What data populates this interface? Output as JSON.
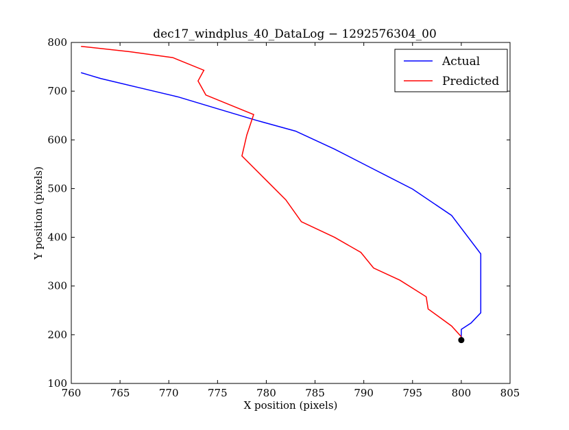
{
  "chart_data": {
    "type": "line",
    "title": "dec17_windplus_40_DataLog − 1292576304_00",
    "xlabel": "X position (pixels)",
    "ylabel": "Y position (pixels)",
    "xlim": [
      760,
      805
    ],
    "ylim": [
      100,
      800
    ],
    "x_ticks": [
      760,
      765,
      770,
      775,
      780,
      785,
      790,
      795,
      800,
      805
    ],
    "y_ticks": [
      100,
      200,
      300,
      400,
      500,
      600,
      700,
      800
    ],
    "grid": false,
    "legend_position": "top-right",
    "series": [
      {
        "name": "Actual",
        "color": "#0000ff",
        "points": [
          [
            761.0,
            738
          ],
          [
            763.0,
            726
          ],
          [
            767.0,
            707
          ],
          [
            771.0,
            688
          ],
          [
            775.0,
            664
          ],
          [
            779.0,
            640
          ],
          [
            783.0,
            618
          ],
          [
            787.0,
            581
          ],
          [
            791.0,
            540
          ],
          [
            795.0,
            499
          ],
          [
            799.0,
            445
          ],
          [
            802.0,
            366
          ],
          [
            802.0,
            245
          ],
          [
            801.0,
            224
          ],
          [
            800.0,
            211
          ],
          [
            800.0,
            190
          ]
        ]
      },
      {
        "name": "Predicted",
        "color": "#ff0000",
        "points": [
          [
            761.0,
            792
          ],
          [
            766.0,
            781
          ],
          [
            770.4,
            769
          ],
          [
            773.6,
            743
          ],
          [
            773.0,
            721
          ],
          [
            773.8,
            692
          ],
          [
            778.7,
            652
          ],
          [
            778.0,
            610
          ],
          [
            777.5,
            567
          ],
          [
            780.0,
            517
          ],
          [
            782.0,
            477
          ],
          [
            783.6,
            432
          ],
          [
            787.0,
            400
          ],
          [
            789.7,
            369
          ],
          [
            791.0,
            337
          ],
          [
            793.7,
            312
          ],
          [
            796.4,
            278
          ],
          [
            796.6,
            253
          ],
          [
            799.0,
            218
          ],
          [
            800.0,
            196
          ]
        ]
      }
    ],
    "markers": [
      {
        "x": 800.0,
        "y": 189,
        "color": "#000000"
      }
    ]
  }
}
